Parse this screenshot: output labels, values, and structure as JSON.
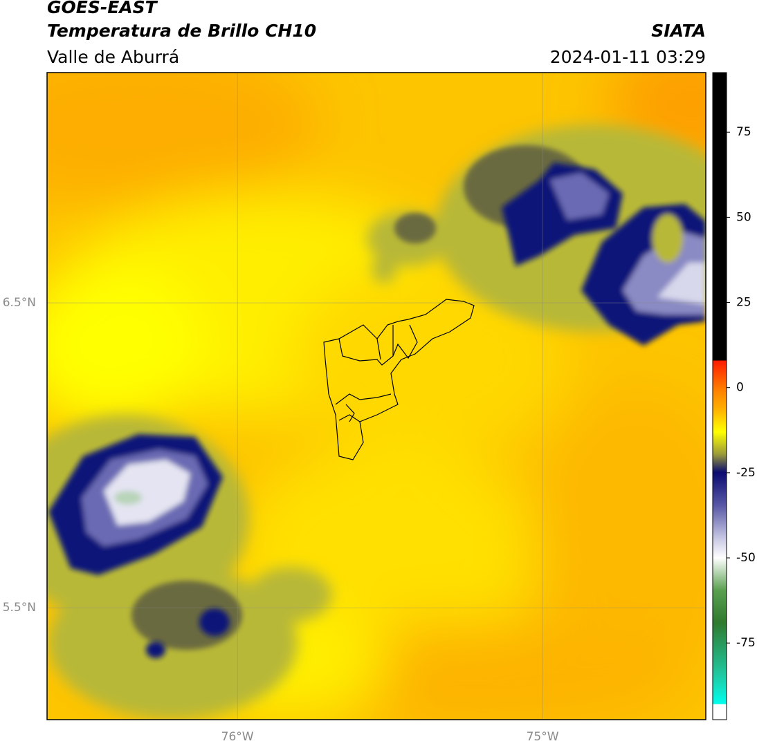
{
  "header": {
    "satellite": "GOES-EAST",
    "product": "Temperatura de Brillo CH10",
    "region": "Valle de Aburrá",
    "source": "SIATA",
    "timestamp": "2024-01-11 03:29"
  },
  "map": {
    "lonlim": [
      -76.624,
      -74.465
    ],
    "latlim": [
      5.133,
      7.255
    ],
    "lonticks": [
      {
        "value": -76,
        "label": "76°W"
      },
      {
        "value": -75,
        "label": "75°W"
      }
    ],
    "latticks": [
      {
        "value": 6.5,
        "label": "6.5°N"
      },
      {
        "value": 5.5,
        "label": "5.5°N"
      }
    ],
    "grid": true
  },
  "colorbar": {
    "lim": [
      -97.5,
      92.5
    ],
    "ticks": [
      75,
      50,
      25,
      0,
      -25,
      -50,
      -75
    ]
  }
}
